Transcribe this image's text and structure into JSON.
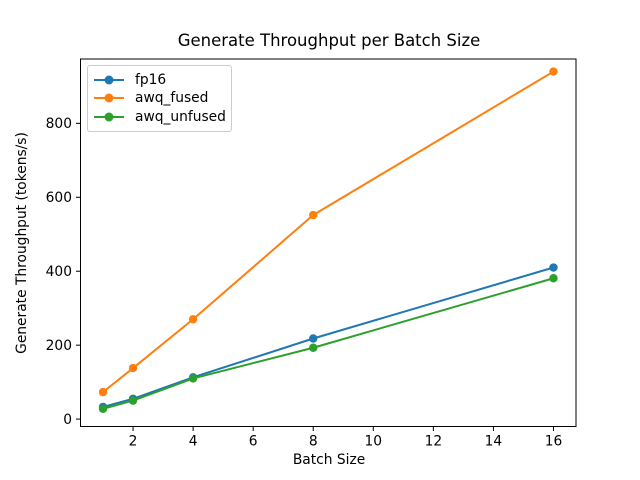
{
  "figure": {
    "background": "#ffffff",
    "axis_color": "#000000",
    "text_color": "#000000",
    "legend_border_color": "#cccccc"
  },
  "chart_data": {
    "type": "line",
    "title": "Generate Throughput per Batch Size",
    "xlabel": "Batch Size",
    "ylabel": "Generate Throughput (tokens/s)",
    "x": [
      1,
      2,
      4,
      8,
      16
    ],
    "series": [
      {
        "name": "fp16",
        "color": "#1f77b4",
        "values": [
          33,
          55,
          113,
          218,
          410
        ]
      },
      {
        "name": "awq_fused",
        "color": "#ff7f0e",
        "values": [
          73,
          138,
          270,
          552,
          940
        ]
      },
      {
        "name": "awq_unfused",
        "color": "#2ca02c",
        "values": [
          28,
          50,
          110,
          193,
          381
        ]
      }
    ],
    "xticks": [
      2,
      4,
      6,
      8,
      10,
      12,
      14,
      16
    ],
    "yticks": [
      0,
      200,
      400,
      600,
      800
    ],
    "xlim": [
      0.25,
      16.75
    ],
    "ylim": [
      -20,
      974
    ],
    "grid": false,
    "marker": "o",
    "legend_position": "upper left"
  }
}
